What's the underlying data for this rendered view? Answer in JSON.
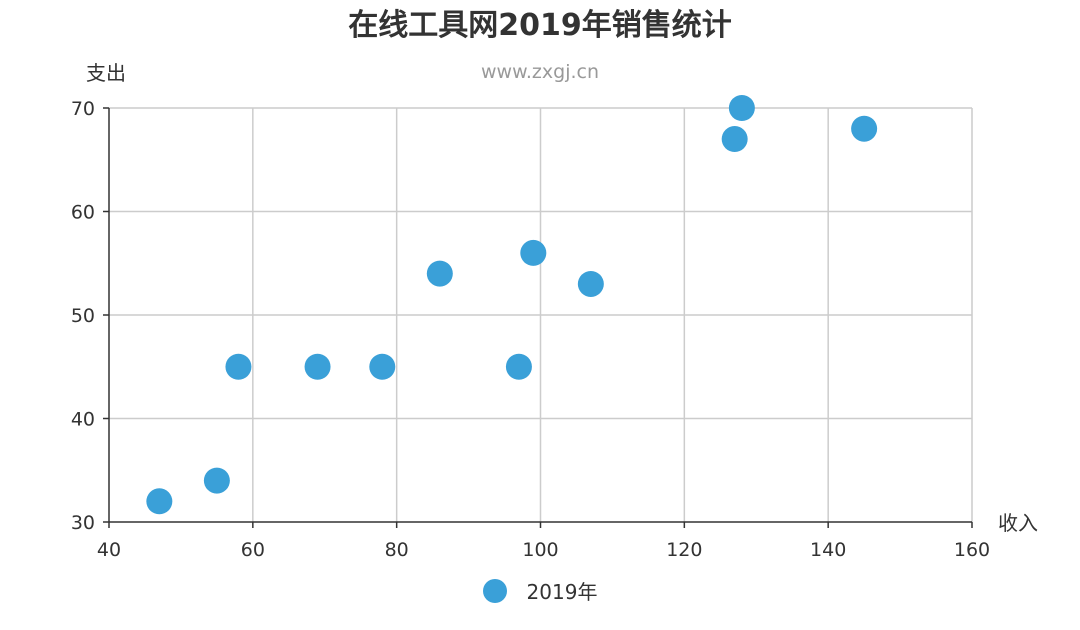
{
  "chart_data": {
    "type": "scatter",
    "title": "在线工具网2019年销售统计",
    "subtitle": "www.zxgj.cn",
    "xlabel": "收入",
    "ylabel": "支出",
    "xlim": [
      40,
      160
    ],
    "ylim": [
      30,
      70
    ],
    "x_ticks": [
      "40",
      "60",
      "80",
      "100",
      "120",
      "140",
      "160"
    ],
    "y_ticks": [
      "30",
      "40",
      "50",
      "60",
      "70"
    ],
    "grid": true,
    "legend_position": "bottom",
    "colors": {
      "series": "#3aa0d8",
      "grid": "#cccccc",
      "axis": "#333333"
    },
    "series": [
      {
        "name": "2019年",
        "points": [
          [
            47,
            32
          ],
          [
            55,
            34
          ],
          [
            58,
            45
          ],
          [
            69,
            45
          ],
          [
            78,
            45
          ],
          [
            86,
            54
          ],
          [
            97,
            45
          ],
          [
            99,
            56
          ],
          [
            107,
            53
          ],
          [
            127,
            67
          ],
          [
            128,
            70
          ],
          [
            145,
            68
          ]
        ]
      }
    ]
  }
}
